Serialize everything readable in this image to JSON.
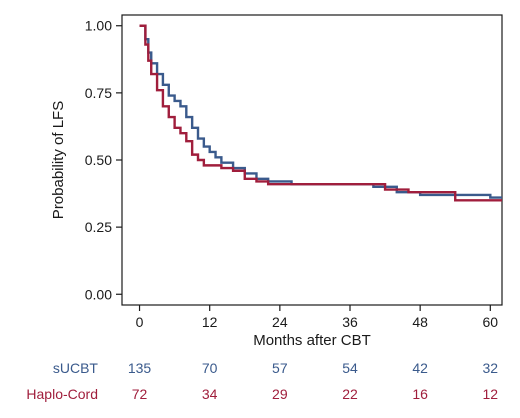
{
  "chart_data": {
    "type": "line",
    "xlabel": "Months after CBT",
    "ylabel": "Probability of LFS",
    "xlim": [
      -3,
      62
    ],
    "ylim": [
      -0.04,
      1.04
    ],
    "x_ticks": [
      0,
      12,
      24,
      36,
      48,
      60
    ],
    "x_tick_labels": [
      "0",
      "12",
      "24",
      "36",
      "48",
      "60"
    ],
    "y_ticks": [
      0.0,
      0.25,
      0.5,
      0.75,
      1.0
    ],
    "y_tick_labels": [
      "0.00",
      "0.25",
      "0.50",
      "0.75",
      "1.00"
    ],
    "grid": false,
    "line_style": "step",
    "series": [
      {
        "name": "sUCBT",
        "color": "#3a5a8c",
        "points": [
          [
            0,
            1.0
          ],
          [
            1,
            0.95
          ],
          [
            1.5,
            0.9
          ],
          [
            2,
            0.86
          ],
          [
            3,
            0.82
          ],
          [
            4,
            0.78
          ],
          [
            5,
            0.74
          ],
          [
            6,
            0.72
          ],
          [
            7,
            0.7
          ],
          [
            8,
            0.66
          ],
          [
            9,
            0.62
          ],
          [
            10,
            0.58
          ],
          [
            11,
            0.55
          ],
          [
            12,
            0.53
          ],
          [
            13,
            0.51
          ],
          [
            14,
            0.49
          ],
          [
            16,
            0.47
          ],
          [
            18,
            0.45
          ],
          [
            20,
            0.43
          ],
          [
            22,
            0.42
          ],
          [
            24,
            0.42
          ],
          [
            26,
            0.41
          ],
          [
            30,
            0.41
          ],
          [
            36,
            0.41
          ],
          [
            40,
            0.4
          ],
          [
            44,
            0.38
          ],
          [
            48,
            0.37
          ],
          [
            54,
            0.37
          ],
          [
            60,
            0.36
          ],
          [
            62,
            0.36
          ]
        ]
      },
      {
        "name": "Haplo-Cord",
        "color": "#a01e3c",
        "points": [
          [
            0,
            1.0
          ],
          [
            1,
            0.93
          ],
          [
            1.5,
            0.87
          ],
          [
            2,
            0.82
          ],
          [
            3,
            0.76
          ],
          [
            4,
            0.7
          ],
          [
            5,
            0.66
          ],
          [
            6,
            0.62
          ],
          [
            7,
            0.6
          ],
          [
            8,
            0.57
          ],
          [
            9,
            0.52
          ],
          [
            10,
            0.5
          ],
          [
            11,
            0.48
          ],
          [
            12,
            0.48
          ],
          [
            14,
            0.47
          ],
          [
            16,
            0.46
          ],
          [
            18,
            0.43
          ],
          [
            20,
            0.42
          ],
          [
            22,
            0.41
          ],
          [
            24,
            0.41
          ],
          [
            36,
            0.41
          ],
          [
            42,
            0.39
          ],
          [
            46,
            0.38
          ],
          [
            50,
            0.38
          ],
          [
            54,
            0.35
          ],
          [
            60,
            0.35
          ],
          [
            62,
            0.35
          ]
        ]
      }
    ],
    "risk_table": {
      "times": [
        0,
        12,
        24,
        36,
        48,
        60
      ],
      "rows": [
        {
          "label": "sUCBT",
          "color": "#3a5a8c",
          "values": [
            "135",
            "70",
            "57",
            "54",
            "42",
            "32"
          ]
        },
        {
          "label": "Haplo-Cord",
          "color": "#a01e3c",
          "values": [
            "72",
            "34",
            "29",
            "22",
            "16",
            "12"
          ]
        }
      ]
    }
  }
}
